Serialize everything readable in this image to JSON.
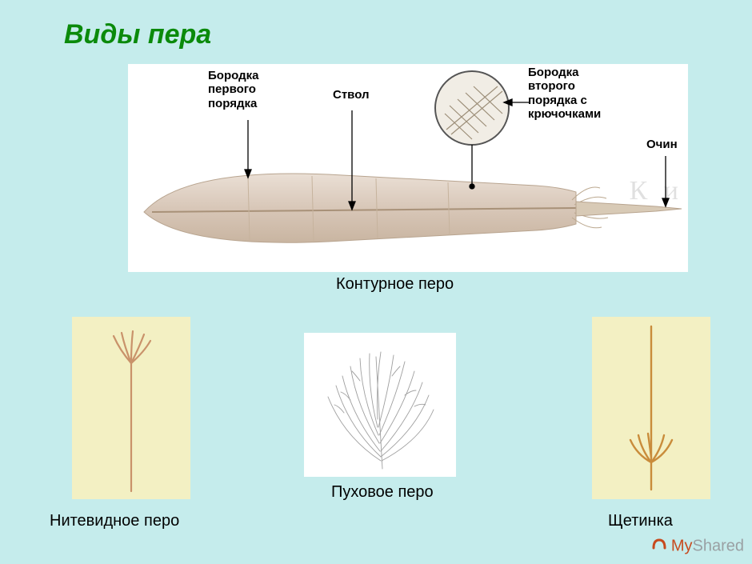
{
  "title": "Виды пера",
  "colors": {
    "page_bg": "#c5ecec",
    "title_color": "#0b8a0b",
    "card_bg": "#f3f0c3",
    "white": "#ffffff",
    "diagram_stroke": "#444444",
    "feather_fill": "#e0d3ca",
    "feather_edge": "#bca895",
    "quill_fill": "#cdbca8",
    "detail_fill": "#f0ece6",
    "filo_color": "#c9926a",
    "bristle_color": "#c98c3b",
    "down_color": "#8a8a8a"
  },
  "diagram": {
    "caption": "Контурное перо",
    "labels": {
      "barb1": "Бородка\nпервого\nпорядка",
      "shaft": "Ствол",
      "barb2": "Бородка\nвторого\nпорядка с\nкрючочками",
      "calamus": "Очин"
    },
    "watermark": "К   и"
  },
  "cards": {
    "filoplume": {
      "label": "Нитевидное перо"
    },
    "down": {
      "label": "Пуховое перо"
    },
    "bristle": {
      "label": "Щетинка"
    }
  },
  "footer": {
    "my": "My",
    "shared": "Shared"
  }
}
